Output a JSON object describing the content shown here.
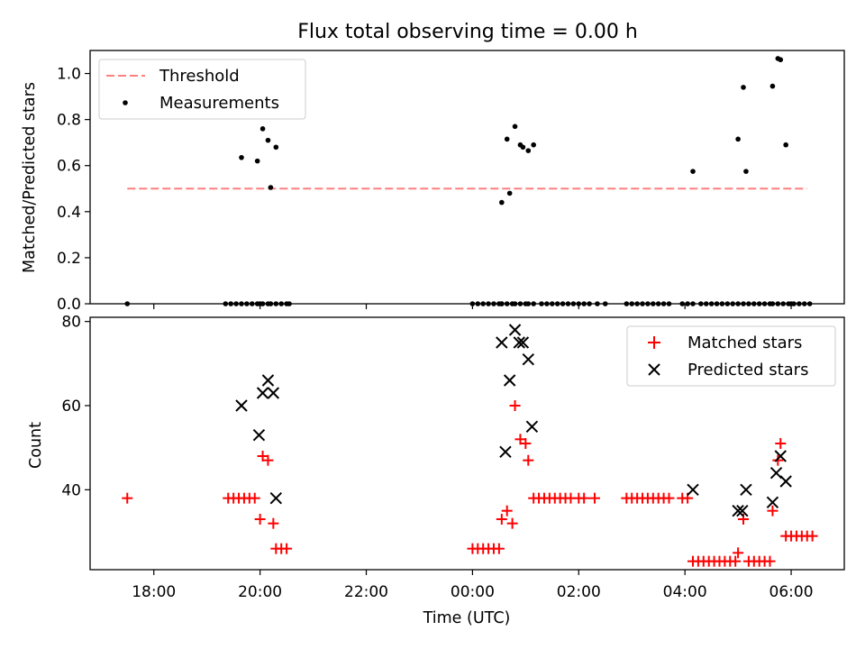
{
  "figure": {
    "title": "Flux total observing time = 0.00 h"
  },
  "colors": {
    "threshold": "#ff7f7f",
    "measurement": "#000000",
    "matched": "#ff0000",
    "predicted": "#000000"
  },
  "chart_data": [
    {
      "type": "scatter",
      "panel": "top",
      "title": "Flux total observing time = 0.00 h",
      "xlabel": "",
      "ylabel": "Matched/Predicted stars",
      "xlim": [
        16.8,
        31.0
      ],
      "ylim": [
        0.0,
        1.1
      ],
      "yticks": [
        0.0,
        0.2,
        0.4,
        0.6,
        0.8,
        1.0
      ],
      "ytick_labels": [
        "0.0",
        "0.2",
        "0.4",
        "0.6",
        "0.8",
        "1.0"
      ],
      "legend_position": "upper-left",
      "series": [
        {
          "name": "Threshold",
          "kind": "dashed-line",
          "color": "#ff7f7f",
          "x": [
            17.5,
            30.3
          ],
          "y": [
            0.5,
            0.5
          ]
        },
        {
          "name": "Measurements",
          "kind": "dots",
          "color": "#000000",
          "x": [
            17.5,
            19.35,
            19.45,
            19.55,
            19.65,
            19.75,
            19.85,
            19.95,
            20.0,
            20.05,
            20.15,
            20.2,
            20.3,
            20.4,
            20.5,
            20.55,
            24.0,
            24.1,
            24.2,
            24.3,
            24.4,
            24.5,
            24.55,
            24.55,
            24.65,
            24.75,
            24.8,
            24.9,
            25.0,
            25.05,
            25.15,
            25.3,
            25.4,
            25.5,
            25.6,
            25.7,
            25.8,
            25.9,
            26.0,
            26.1,
            26.2,
            26.35,
            26.5,
            26.9,
            27.0,
            27.1,
            27.2,
            27.3,
            27.4,
            27.5,
            27.6,
            27.7,
            27.95,
            28.05,
            28.15,
            28.3,
            28.4,
            28.5,
            28.6,
            28.7,
            28.8,
            28.9,
            29.0,
            29.1,
            29.2,
            29.3,
            29.4,
            29.5,
            29.6,
            29.65,
            29.75,
            29.85,
            29.95,
            30.0,
            30.05,
            30.15,
            30.25,
            30.35,
            19.65,
            19.95,
            20.05,
            20.15,
            20.2,
            20.3,
            24.55,
            24.65,
            24.7,
            24.8,
            24.9,
            24.95,
            25.05,
            25.15,
            28.15,
            29.0,
            29.1,
            29.15,
            29.65,
            29.75,
            29.8,
            29.9
          ],
          "y": [
            0.0,
            0.0,
            0.0,
            0.0,
            0.0,
            0.0,
            0.0,
            0.0,
            0.0,
            0.0,
            0.0,
            0.0,
            0.0,
            0.0,
            0.0,
            0.0,
            0.0,
            0.0,
            0.0,
            0.0,
            0.0,
            0.0,
            0.0,
            0.0,
            0.0,
            0.0,
            0.0,
            0.0,
            0.0,
            0.0,
            0.0,
            0.0,
            0.0,
            0.0,
            0.0,
            0.0,
            0.0,
            0.0,
            0.0,
            0.0,
            0.0,
            0.0,
            0.0,
            0.0,
            0.0,
            0.0,
            0.0,
            0.0,
            0.0,
            0.0,
            0.0,
            0.0,
            0.0,
            0.0,
            0.0,
            0.0,
            0.0,
            0.0,
            0.0,
            0.0,
            0.0,
            0.0,
            0.0,
            0.0,
            0.0,
            0.0,
            0.0,
            0.0,
            0.0,
            0.0,
            0.0,
            0.0,
            0.0,
            0.0,
            0.0,
            0.0,
            0.0,
            0.0,
            0.635,
            0.62,
            0.76,
            0.71,
            0.505,
            0.68,
            0.44,
            0.715,
            0.48,
            0.77,
            0.69,
            0.68,
            0.665,
            0.69,
            0.575,
            0.715,
            0.94,
            0.575,
            0.945,
            1.065,
            1.06,
            0.69
          ]
        }
      ]
    },
    {
      "type": "scatter",
      "panel": "bottom",
      "xlabel": "Time (UTC)",
      "ylabel": "Count",
      "xlim": [
        16.8,
        31.0
      ],
      "ylim": [
        21,
        81
      ],
      "xticks": [
        18,
        20,
        22,
        24,
        26,
        28,
        30
      ],
      "xtick_labels": [
        "18:00",
        "20:00",
        "22:00",
        "00:00",
        "02:00",
        "04:00",
        "06:00"
      ],
      "yticks": [
        40,
        60,
        80
      ],
      "ytick_labels": [
        "40",
        "60",
        "80"
      ],
      "legend_position": "upper-right",
      "series": [
        {
          "name": "Matched stars",
          "kind": "plus",
          "color": "#ff0000",
          "x": [
            17.5,
            19.4,
            19.5,
            19.6,
            19.7,
            19.8,
            19.9,
            20.0,
            20.05,
            20.15,
            20.25,
            20.3,
            20.4,
            20.5,
            24.0,
            24.1,
            24.2,
            24.3,
            24.4,
            24.5,
            24.55,
            24.65,
            24.75,
            24.8,
            24.9,
            25.0,
            25.05,
            25.15,
            25.25,
            25.35,
            25.45,
            25.55,
            25.65,
            25.75,
            25.85,
            26.0,
            26.1,
            26.3,
            26.9,
            27.0,
            27.1,
            27.2,
            27.3,
            27.4,
            27.5,
            27.6,
            27.7,
            27.95,
            28.05,
            28.15,
            28.25,
            28.35,
            28.45,
            28.55,
            28.65,
            28.75,
            28.85,
            28.95,
            29.0,
            29.1,
            29.2,
            29.3,
            29.4,
            29.5,
            29.6,
            29.65,
            29.75,
            29.8,
            29.9,
            30.0,
            30.1,
            30.2,
            30.3,
            30.4
          ],
          "y": [
            38,
            38,
            38,
            38,
            38,
            38,
            38,
            33,
            48,
            47,
            32,
            26,
            26,
            26,
            26,
            26,
            26,
            26,
            26,
            26,
            33,
            35,
            32,
            60,
            52,
            51,
            47,
            38,
            38,
            38,
            38,
            38,
            38,
            38,
            38,
            38,
            38,
            38,
            38,
            38,
            38,
            38,
            38,
            38,
            38,
            38,
            38,
            38,
            38,
            23,
            23,
            23,
            23,
            23,
            23,
            23,
            23,
            23,
            25,
            33,
            23,
            23,
            23,
            23,
            23,
            35,
            47,
            51,
            29,
            29,
            29,
            29,
            29,
            29
          ]
        },
        {
          "name": "Predicted stars",
          "kind": "x",
          "color": "#000000",
          "x": [
            19.65,
            19.98,
            20.05,
            20.15,
            20.25,
            20.3,
            24.55,
            24.62,
            24.7,
            24.8,
            24.88,
            24.95,
            25.05,
            25.12,
            28.15,
            29.0,
            29.08,
            29.15,
            29.65,
            29.72,
            29.8,
            29.9
          ],
          "y": [
            60,
            53,
            63,
            66,
            63,
            38,
            75,
            49,
            66,
            78,
            75,
            75,
            71,
            55,
            40,
            35,
            35,
            40,
            37,
            44,
            48,
            42
          ]
        }
      ]
    }
  ]
}
